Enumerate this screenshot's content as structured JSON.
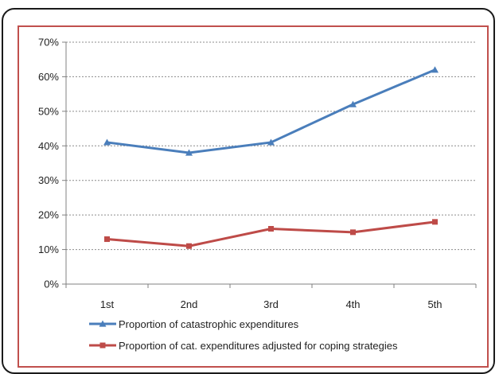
{
  "chart_data": {
    "type": "line",
    "title": "",
    "xlabel": "",
    "ylabel": "",
    "categories": [
      "1st",
      "2nd",
      "3rd",
      "4th",
      "5th"
    ],
    "y_ticks": [
      "0%",
      "10%",
      "20%",
      "30%",
      "40%",
      "50%",
      "60%",
      "70%"
    ],
    "ylim": [
      0,
      70
    ],
    "grid": true,
    "legend_placement": "bottom",
    "series": [
      {
        "name": "Proportion of catastrophic expenditures",
        "values": [
          41,
          38,
          41,
          52,
          62
        ],
        "color": "#4a7ebb",
        "marker": "triangle"
      },
      {
        "name": "Proportion of cat. expenditures adjusted for coping strategies",
        "values": [
          13,
          11,
          16,
          15,
          18
        ],
        "color": "#be4b48",
        "marker": "square"
      }
    ]
  }
}
